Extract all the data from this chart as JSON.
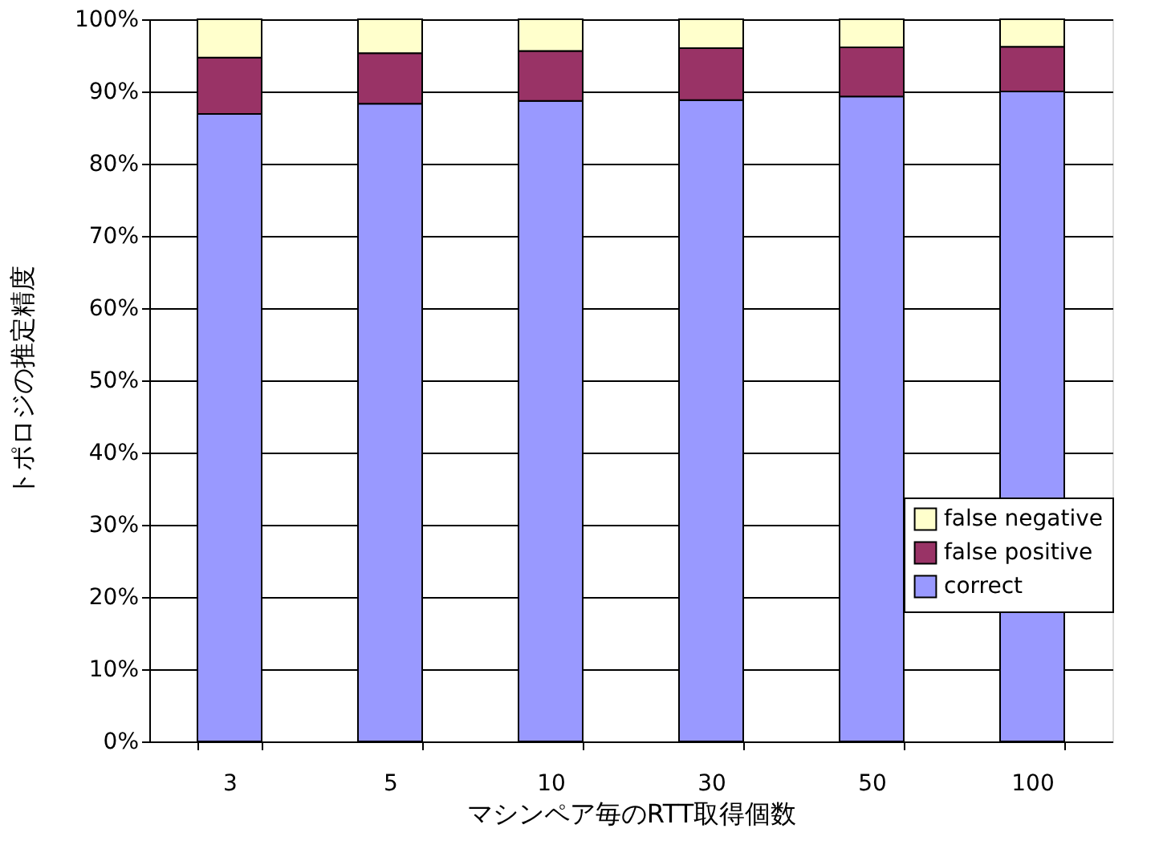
{
  "chart_data": {
    "type": "bar",
    "stacked": true,
    "xlabel": "マシンペア毎のRTT取得個数",
    "ylabel": "トポロジの推定精度",
    "categories": [
      "3",
      "5",
      "10",
      "30",
      "50",
      "100"
    ],
    "series": [
      {
        "name": "correct",
        "color": "#9999ff",
        "values": [
          86.9,
          88.3,
          88.7,
          88.8,
          89.3,
          90.0
        ]
      },
      {
        "name": "false positive",
        "color": "#993366",
        "values": [
          7.8,
          7.0,
          6.9,
          7.2,
          6.8,
          6.2
        ]
      },
      {
        "name": "false negative",
        "color": "#ffffcc",
        "values": [
          5.3,
          4.7,
          4.4,
          4.0,
          3.9,
          3.8
        ]
      }
    ],
    "ylim": [
      0,
      100
    ],
    "yticks": [
      {
        "value": 0,
        "label": "0%"
      },
      {
        "value": 10,
        "label": "10%"
      },
      {
        "value": 20,
        "label": "20%"
      },
      {
        "value": 30,
        "label": "30%"
      },
      {
        "value": 40,
        "label": "40%"
      },
      {
        "value": 50,
        "label": "50%"
      },
      {
        "value": 60,
        "label": "60%"
      },
      {
        "value": 70,
        "label": "70%"
      },
      {
        "value": 80,
        "label": "80%"
      },
      {
        "value": 90,
        "label": "90%"
      },
      {
        "value": 100,
        "label": "100%"
      }
    ],
    "grid": "y",
    "legend": "bottom right"
  }
}
